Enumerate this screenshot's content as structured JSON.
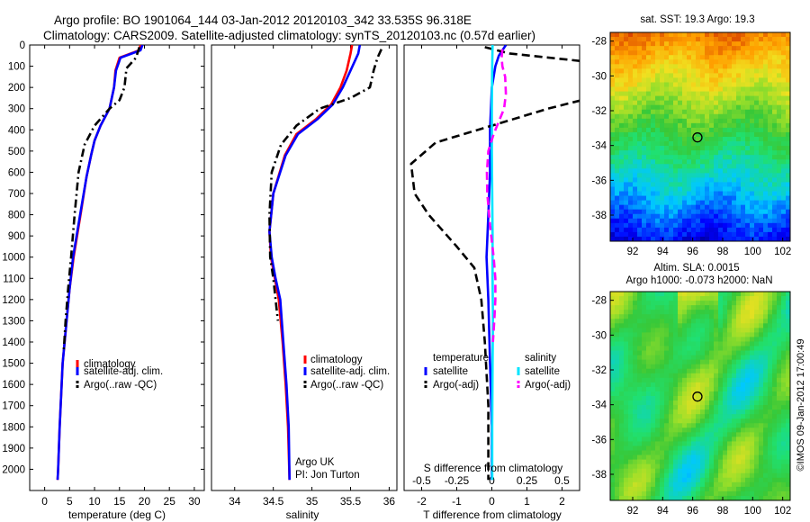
{
  "header": {
    "line1": "Argo profile: BO 1901064_144 03-Jan-2012 20120103_342 33.535S 96.318E",
    "line2": "Climatology: CARS2009. Satellite-adjusted climatology: synTS_20120103.nc (0.57d earlier)"
  },
  "chart_data": [
    {
      "type": "line",
      "name": "temperature-profile",
      "xlabel": "temperature (deg C)",
      "ylabel": "",
      "xlim": [
        -3,
        32
      ],
      "ylim": [
        2100,
        0
      ],
      "yaxis": "pressure (reversed)",
      "xticks": [
        0,
        5,
        10,
        15,
        20,
        25,
        30
      ],
      "yticks": [
        0,
        100,
        200,
        300,
        400,
        500,
        600,
        700,
        800,
        900,
        1000,
        1100,
        1200,
        1300,
        1400,
        1500,
        1600,
        1700,
        1800,
        1900,
        2000
      ],
      "legend": {
        "placement": "lower-center",
        "entries": [
          "climatology",
          "satellite-adj. clim.",
          "Argo(..raw -QC)"
        ]
      },
      "series": [
        {
          "name": "climatology",
          "color": "#ff0000",
          "style": "solid",
          "x": [
            19.2,
            19.0,
            15.0,
            14.2,
            13.9,
            13.0,
            11.2,
            10.0,
            9.3,
            8.4,
            7.2,
            5.8,
            5.0,
            4.4,
            3.6,
            3.0,
            2.7,
            2.6
          ],
          "y": [
            0,
            25,
            60,
            120,
            200,
            300,
            380,
            450,
            520,
            620,
            800,
            1000,
            1150,
            1300,
            1500,
            1800,
            2000,
            2050
          ]
        },
        {
          "name": "satellite-adj. clim.",
          "color": "#0000ff",
          "style": "solid",
          "x": [
            19.6,
            19.2,
            15.2,
            14.3,
            13.9,
            13.0,
            11.2,
            10.0,
            9.3,
            8.4,
            7.1,
            5.7,
            5.0,
            4.4,
            3.6,
            3.0,
            2.7,
            2.6
          ],
          "y": [
            0,
            25,
            60,
            120,
            200,
            300,
            380,
            450,
            520,
            620,
            800,
            1000,
            1150,
            1300,
            1500,
            1800,
            2000,
            2050
          ]
        },
        {
          "name": "Argo(..raw -QC)",
          "color": "#000000",
          "style": "dashdot",
          "x": [
            19.0,
            18.3,
            16.4,
            16.0,
            15.0,
            13.0,
            10.0,
            8.0,
            6.8,
            6.0,
            5.3,
            4.7,
            4.2,
            3.8
          ],
          "y": [
            10,
            60,
            110,
            200,
            260,
            300,
            380,
            470,
            600,
            800,
            1000,
            1150,
            1300,
            1450
          ]
        }
      ]
    },
    {
      "type": "line",
      "name": "salinity-profile",
      "xlabel": "salinity",
      "ylabel": "",
      "xlim": [
        33.7,
        36.1
      ],
      "ylim": [
        2100,
        0
      ],
      "xticks": [
        34,
        34.5,
        35,
        35.5,
        36
      ],
      "legend": {
        "placement": "lower-center",
        "entries": [
          "climatology",
          "satellite-adj. clim.",
          "Argo(..raw -QC)"
        ]
      },
      "annotation": [
        "Argo UK",
        "PI: Jon Turton"
      ],
      "series": [
        {
          "name": "climatology",
          "color": "#ff0000",
          "style": "solid",
          "x": [
            35.52,
            35.5,
            35.45,
            35.37,
            35.25,
            35.05,
            34.8,
            34.65,
            34.5,
            34.45,
            34.47,
            34.52,
            34.57,
            34.62,
            34.66,
            34.69,
            34.71
          ],
          "y": [
            0,
            40,
            120,
            200,
            280,
            350,
            420,
            520,
            700,
            880,
            1000,
            1100,
            1200,
            1400,
            1600,
            1800,
            2050
          ]
        },
        {
          "name": "satellite-adj. clim.",
          "color": "#0000ff",
          "style": "solid",
          "x": [
            35.62,
            35.6,
            35.5,
            35.4,
            35.27,
            35.07,
            34.82,
            34.66,
            34.5,
            34.45,
            34.48,
            34.53,
            34.59,
            34.63,
            34.67,
            34.7,
            34.71
          ],
          "y": [
            0,
            40,
            120,
            200,
            280,
            350,
            420,
            520,
            700,
            880,
            1000,
            1100,
            1200,
            1400,
            1600,
            1800,
            2050
          ]
        },
        {
          "name": "Argo(..raw -QC)",
          "color": "#000000",
          "style": "dashdot",
          "x": [
            35.9,
            35.85,
            35.8,
            35.75,
            35.5,
            35.1,
            34.8,
            34.6,
            34.48,
            34.45,
            34.46,
            34.5,
            34.53,
            34.56
          ],
          "y": [
            20,
            60,
            120,
            200,
            250,
            300,
            380,
            470,
            600,
            800,
            1000,
            1100,
            1200,
            1300
          ]
        }
      ]
    },
    {
      "type": "line",
      "name": "difference-profile",
      "xlabel": "T difference from climatology",
      "xlabel_top": "S difference from climatology",
      "xlim": [
        -2.5,
        2.5
      ],
      "ylim": [
        2100,
        0
      ],
      "xticks": [
        -2,
        -1,
        0,
        1,
        2
      ],
      "xticks_salinity": [
        -0.5,
        -0.25,
        0,
        0.25,
        0.5
      ],
      "legend": {
        "placement": "lower-center",
        "headers": [
          "temperature",
          "salinity"
        ],
        "entries": [
          "satellite",
          "Argo(-adj)",
          "satellite",
          "Argo(-adj)"
        ]
      },
      "series": [
        {
          "name": "temperature satellite",
          "color": "#0000ff",
          "style": "solid",
          "x": [
            0.4,
            0.2,
            0.1,
            0.0,
            -0.05,
            -0.05,
            -0.1,
            -0.15,
            -0.1,
            -0.05,
            0.0,
            0.0
          ],
          "y": [
            0,
            50,
            100,
            200,
            400,
            600,
            800,
            1000,
            1200,
            1500,
            1800,
            2050
          ]
        },
        {
          "name": "temperature Argo(-adj)",
          "color": "#000000",
          "style": "dashed",
          "x": [
            -0.2,
            0.5,
            2.8,
            3.2,
            2.8,
            1.6,
            0.0,
            -1.6,
            -2.3,
            -2.2,
            -1.8,
            -1.0,
            -0.5,
            -0.3,
            -0.2,
            -0.1,
            -0.1
          ],
          "y": [
            10,
            40,
            80,
            120,
            250,
            300,
            380,
            460,
            560,
            700,
            800,
            950,
            1050,
            1200,
            1400,
            1700,
            2050
          ]
        },
        {
          "name": "salinity satellite",
          "color": "#00e5ff",
          "style": "solid",
          "x": [
            0.02,
            0.01,
            0.0,
            0.0,
            0.01,
            0.02,
            0.02,
            0.03,
            0.02,
            0.01,
            0.01
          ],
          "y": [
            0,
            100,
            300,
            500,
            700,
            900,
            1100,
            1300,
            1500,
            1800,
            2050
          ]
        },
        {
          "name": "salinity Argo(-adj)",
          "color": "#ff00ff",
          "style": "dashed",
          "x": [
            0.3,
            0.28,
            0.3,
            0.38,
            0.4,
            0.35,
            0.2,
            0.05,
            -0.1,
            -0.14,
            -0.13,
            -0.05,
            0.05,
            0.1,
            0.1,
            0.07,
            0.03
          ],
          "y": [
            20,
            60,
            100,
            150,
            230,
            300,
            360,
            420,
            500,
            600,
            700,
            850,
            1000,
            1100,
            1200,
            1300,
            1400
          ]
        }
      ]
    },
    {
      "type": "heatmap",
      "name": "sst-map",
      "title": "sat. SST: 19.3  Argo: 19.3",
      "xlim": [
        90.5,
        102.5
      ],
      "ylim": [
        -39.5,
        -27.5
      ],
      "xticks": [
        92,
        94,
        96,
        98,
        100,
        102
      ],
      "yticks": [
        -28,
        -30,
        -32,
        -34,
        -36,
        -38
      ],
      "marker": {
        "lon": 96.318,
        "lat": -33.535
      }
    },
    {
      "type": "heatmap",
      "name": "sla-map",
      "title": "Altim. SLA: 0.0015",
      "subtitle": "Argo h1000: -0.073  h2000: NaN",
      "xlim": [
        90.5,
        102.5
      ],
      "ylim": [
        -39.5,
        -27.5
      ],
      "xticks": [
        92,
        94,
        96,
        98,
        100,
        102
      ],
      "yticks": [
        -28,
        -30,
        -32,
        -34,
        -36,
        -38
      ],
      "marker": {
        "lon": 96.318,
        "lat": -33.535
      }
    }
  ],
  "credit": "©IMOS 09-Jan-2012 17:00:49"
}
